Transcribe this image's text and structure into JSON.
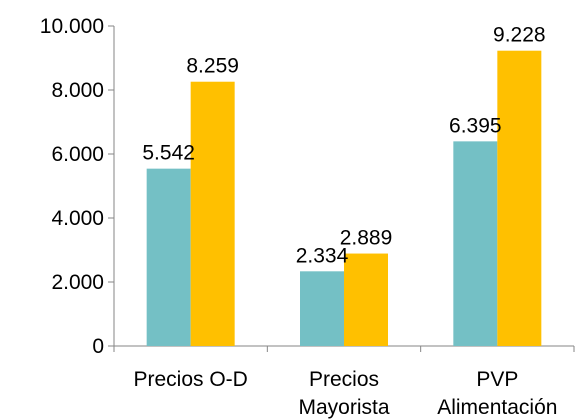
{
  "chart_data": {
    "type": "bar",
    "categories": [
      [
        "Precios O-D"
      ],
      [
        "Precios",
        "Mayorista"
      ],
      [
        "PVP",
        "Alimentación"
      ]
    ],
    "series": [
      {
        "values": [
          5542,
          2334,
          6395
        ],
        "labels": [
          "5.542",
          "2.334",
          "6.395"
        ],
        "color": "#74c0c5"
      },
      {
        "values": [
          8259,
          2889,
          9228
        ],
        "labels": [
          "8.259",
          "2.889",
          "9.228"
        ],
        "color": "#ffc000"
      }
    ],
    "ylim": [
      0,
      10000
    ],
    "yticks": [
      0,
      2000,
      4000,
      6000,
      8000,
      10000
    ],
    "ytick_labels": [
      "0",
      "2.000",
      "4.000",
      "6.000",
      "8.000",
      "10.000"
    ],
    "grid": false,
    "legend": "none",
    "title": "",
    "xlabel": "",
    "ylabel": ""
  }
}
